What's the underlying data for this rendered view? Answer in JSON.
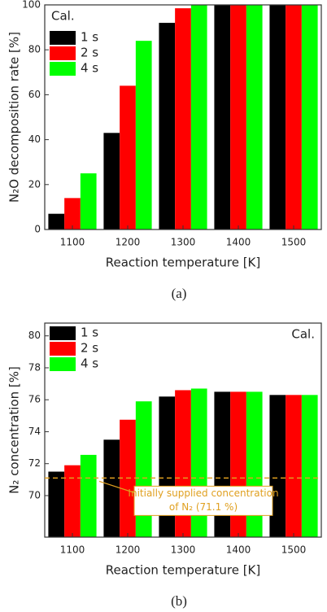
{
  "chart_data": [
    {
      "type": "bar",
      "ylabel": "N₂O decomposition rate [%]",
      "xlabel": "Reaction temperature [K]",
      "annotation": "Cal.",
      "caption": "(a)",
      "categories": [
        "1100",
        "1200",
        "1300",
        "1400",
        "1500"
      ],
      "series": [
        {
          "name": "1 s",
          "color": "#000000",
          "values": [
            7,
            43,
            92,
            100,
            100
          ]
        },
        {
          "name": "2 s",
          "color": "#ff0000",
          "values": [
            14,
            64,
            98.5,
            100,
            100
          ]
        },
        {
          "name": "4 s",
          "color": "#00ff00",
          "values": [
            25,
            84,
            100,
            100,
            100
          ]
        }
      ],
      "ylim": [
        0,
        100
      ],
      "yticks": [
        0,
        20,
        40,
        60,
        80,
        100
      ],
      "legend": "upper left"
    },
    {
      "type": "bar",
      "ylabel": "N₂ concentration [%]",
      "xlabel": "Reaction temperature [K]",
      "annotation": "Cal.",
      "caption": "(b)",
      "categories": [
        "1100",
        "1200",
        "1300",
        "1400",
        "1500"
      ],
      "series": [
        {
          "name": "1 s",
          "color": "#000000",
          "values": [
            71.5,
            73.5,
            76.2,
            76.5,
            76.3
          ]
        },
        {
          "name": "2 s",
          "color": "#ff0000",
          "values": [
            71.9,
            74.75,
            76.6,
            76.5,
            76.3
          ]
        },
        {
          "name": "4 s",
          "color": "#00ff00",
          "values": [
            72.55,
            75.9,
            76.7,
            76.5,
            76.3
          ]
        }
      ],
      "ylim": [
        67.4,
        80.8
      ],
      "yticks": [
        70,
        72,
        74,
        76,
        78,
        80
      ],
      "legend": "upper left",
      "reference_line": 71.1,
      "reference_color": "#e0a020",
      "reference_label": [
        "Initially supplied concentration",
        "of N₂ (71.1 %)"
      ]
    }
  ]
}
